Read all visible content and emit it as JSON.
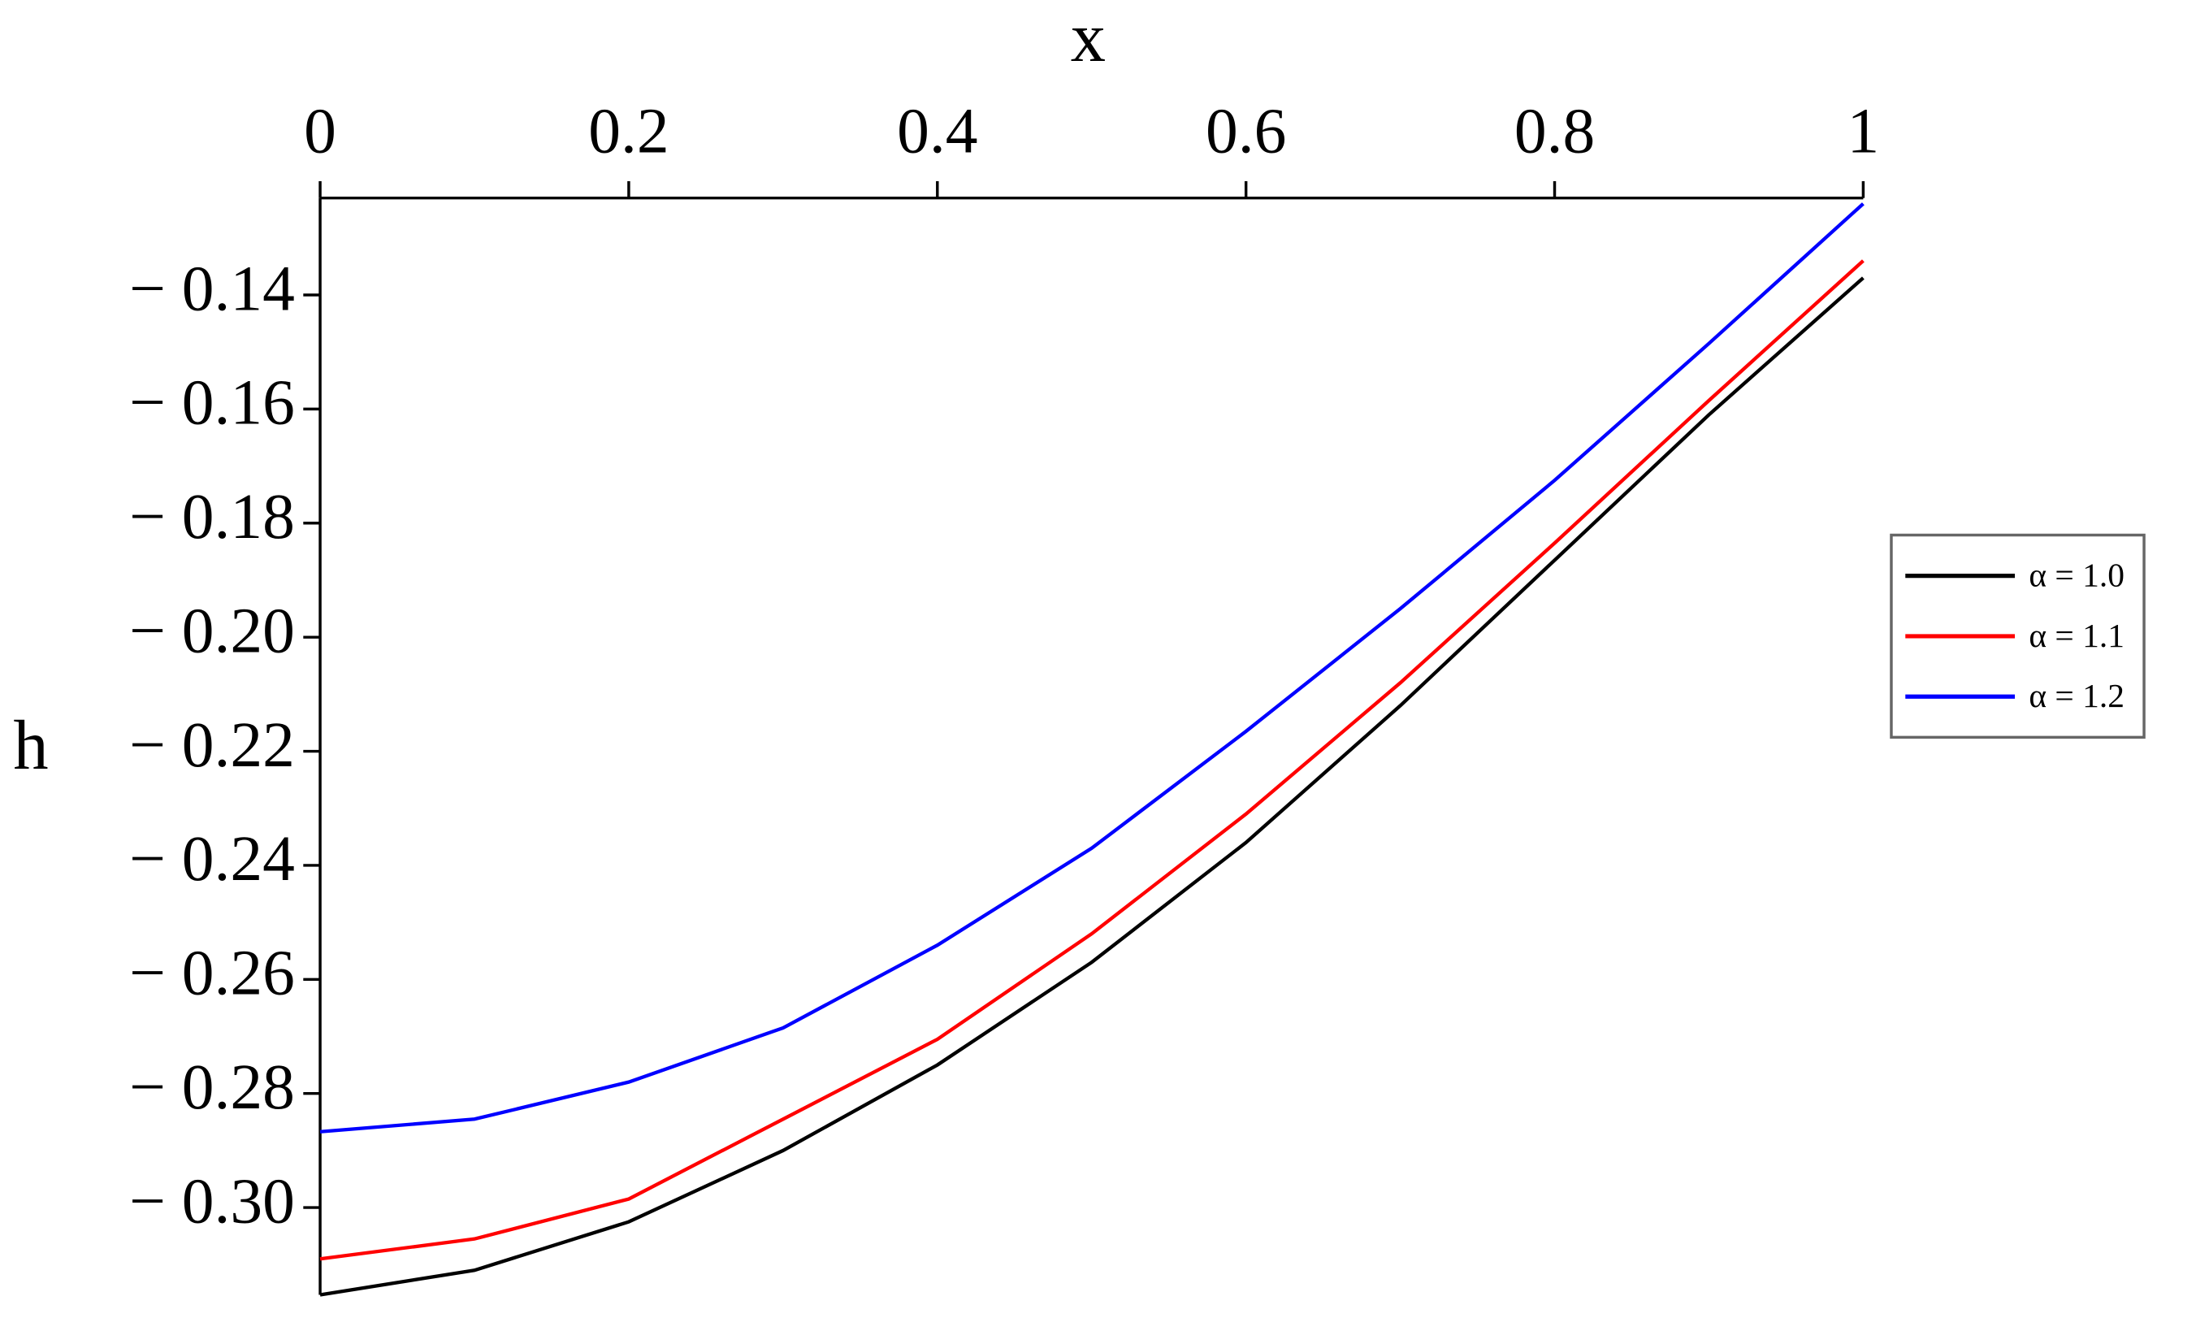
{
  "chart_data": {
    "type": "line",
    "x_label": "x",
    "y_label": "h",
    "x": [
      0,
      0.1,
      0.2,
      0.3,
      0.4,
      0.5,
      0.6,
      0.7,
      0.8,
      0.9,
      1
    ],
    "series": [
      {
        "name": "α = 1.0",
        "color": "#000000",
        "values": [
          -0.3153,
          -0.311,
          -0.3025,
          -0.29,
          -0.275,
          -0.257,
          -0.236,
          -0.212,
          -0.1865,
          -0.161,
          -0.137
        ]
      },
      {
        "name": "α = 1.1",
        "color": "#ff0000",
        "values": [
          -0.309,
          -0.3055,
          -0.2985,
          -0.2845,
          -0.2705,
          -0.252,
          -0.231,
          -0.208,
          -0.1835,
          -0.1585,
          -0.134
        ]
      },
      {
        "name": "α = 1.2",
        "color": "#0000ff",
        "values": [
          -0.2867,
          -0.2845,
          -0.278,
          -0.2685,
          -0.254,
          -0.237,
          -0.2165,
          -0.195,
          -0.1725,
          -0.1485,
          -0.124
        ]
      }
    ],
    "xlim": [
      0,
      1
    ],
    "ylim": [
      -0.3153,
      -0.123
    ],
    "xticks": [
      0,
      0.2,
      0.4,
      0.6,
      0.8,
      1
    ],
    "yticks": [
      {
        "value": -0.14,
        "label": "− 0.14"
      },
      {
        "value": -0.16,
        "label": "− 0.16"
      },
      {
        "value": -0.18,
        "label": "− 0.18"
      },
      {
        "value": -0.2,
        "label": "− 0.20"
      },
      {
        "value": -0.22,
        "label": "− 0.22"
      },
      {
        "value": -0.24,
        "label": "− 0.24"
      },
      {
        "value": -0.26,
        "label": "− 0.26"
      },
      {
        "value": -0.28,
        "label": "− 0.28"
      },
      {
        "value": -0.3,
        "label": "− 0.30"
      }
    ],
    "legend_position": "right"
  }
}
